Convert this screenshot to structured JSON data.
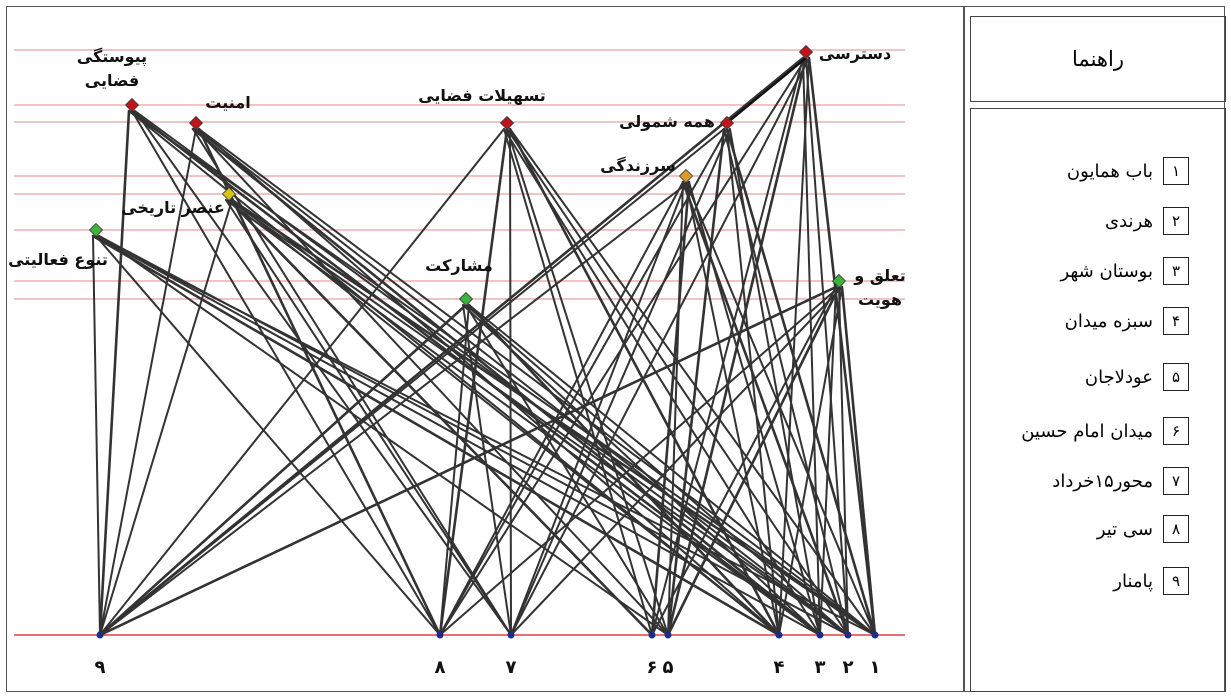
{
  "legend": {
    "title": "راهنما",
    "items": [
      {
        "num": "۱",
        "label": "باب همایون"
      },
      {
        "num": "۲",
        "label": "هرندی"
      },
      {
        "num": "۳",
        "label": "بوستان شهر"
      },
      {
        "num": "۴",
        "label": "سبزه میدان"
      },
      {
        "num": "۵",
        "label": "عودلاجان"
      },
      {
        "num": "۶",
        "label": "میدان امام حسین"
      },
      {
        "num": "۷",
        "label": "محور۱۵خرداد"
      },
      {
        "num": "۸",
        "label": "سی تیر"
      },
      {
        "num": "۹",
        "label": "پامنار"
      }
    ]
  },
  "diagram": {
    "colors": {
      "red": "#c0161b",
      "yellow": "#d8c21a",
      "orange": "#e09a2c",
      "green": "#3db43a",
      "blue": "#1b2c8c",
      "guide": "#e8a0a0",
      "baseline": "#e04040"
    },
    "criteria": [
      {
        "id": "pey",
        "label": [
          "پیوستگی",
          "فضایی"
        ],
        "color": "red"
      },
      {
        "id": "amn",
        "label": [
          "امنیت"
        ],
        "color": "red"
      },
      {
        "id": "tas",
        "label": [
          "تسهیلات فضایی"
        ],
        "color": "red"
      },
      {
        "id": "dast",
        "label": [
          "دسترسی"
        ],
        "color": "red"
      },
      {
        "id": "hame",
        "label": [
          "همه شمولی"
        ],
        "color": "red"
      },
      {
        "id": "sarz",
        "label": [
          "سرزندگی"
        ],
        "color": "orange"
      },
      {
        "id": "onsor",
        "label": [
          "عنصر تاریخی"
        ],
        "color": "yellow"
      },
      {
        "id": "tanav",
        "label": [
          "تنوع فعالیتی"
        ],
        "color": "green"
      },
      {
        "id": "mosh",
        "label": [
          "مشارکت"
        ],
        "color": "green"
      },
      {
        "id": "taal",
        "label": [
          "تعلق و",
          "هویت"
        ],
        "color": "green"
      }
    ],
    "sites": [
      {
        "id": "9",
        "label": "۹"
      },
      {
        "id": "8",
        "label": "۸"
      },
      {
        "id": "7",
        "label": "۷"
      },
      {
        "id": "6",
        "label": "۶"
      },
      {
        "id": "5",
        "label": "۵"
      },
      {
        "id": "4",
        "label": "۴"
      },
      {
        "id": "3",
        "label": "۳"
      },
      {
        "id": "2",
        "label": "۲"
      },
      {
        "id": "1",
        "label": "۱"
      }
    ]
  }
}
